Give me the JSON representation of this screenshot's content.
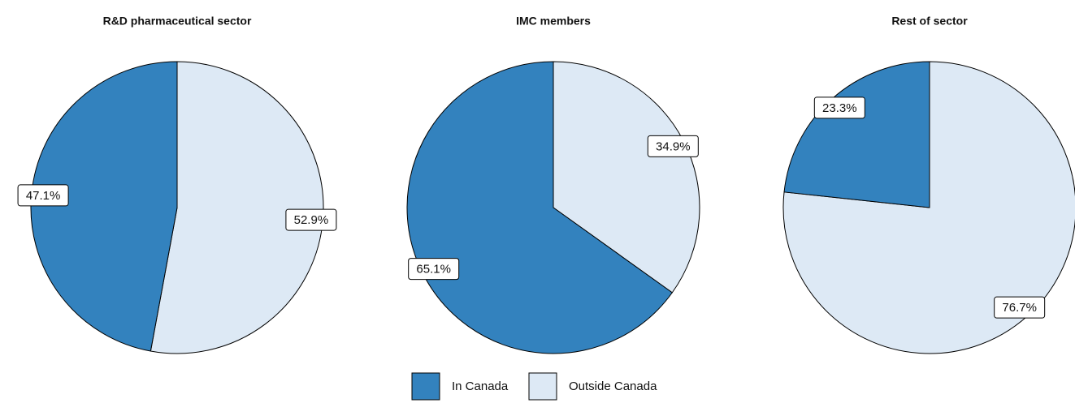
{
  "chart_data": [
    {
      "type": "pie",
      "title": "R&D pharmaceutical sector",
      "categories": [
        "In Canada",
        "Outside Canada"
      ],
      "values": [
        47.1,
        52.9
      ],
      "value_labels": [
        "47.1%",
        "52.9%"
      ],
      "colors": [
        "#3382be",
        "#dde9f5"
      ]
    },
    {
      "type": "pie",
      "title": "IMC members",
      "categories": [
        "In Canada",
        "Outside Canada"
      ],
      "values": [
        65.1,
        34.9
      ],
      "value_labels": [
        "65.1%",
        "34.9%"
      ],
      "colors": [
        "#3382be",
        "#dde9f5"
      ]
    },
    {
      "type": "pie",
      "title": "Rest of sector",
      "categories": [
        "In Canada",
        "Outside Canada"
      ],
      "values": [
        23.3,
        76.7
      ],
      "value_labels": [
        "23.3%",
        "76.7%"
      ],
      "colors": [
        "#3382be",
        "#dde9f5"
      ]
    }
  ]
}
